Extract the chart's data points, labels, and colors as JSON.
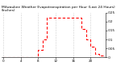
{
  "hours": [
    0,
    1,
    2,
    3,
    4,
    5,
    6,
    7,
    8,
    9,
    10,
    11,
    12,
    13,
    14,
    15,
    16,
    17,
    18,
    19,
    20,
    21,
    22,
    23
  ],
  "values": [
    0,
    0,
    0,
    0,
    0,
    0,
    0,
    0,
    0.004,
    0.01,
    0.022,
    0.022,
    0.022,
    0.022,
    0.022,
    0.022,
    0.022,
    0.022,
    0.016,
    0.01,
    0.006,
    0.002,
    0.001,
    0
  ],
  "line_color": "#ff0000",
  "bg_color": "#ffffff",
  "grid_color": "#999999",
  "ylim": [
    0,
    0.025
  ],
  "yticks": [
    0,
    0.005,
    0.01,
    0.015,
    0.02,
    0.025
  ],
  "ytick_labels": [
    ".0",
    ".005",
    ".01",
    ".015",
    ".02",
    ".025"
  ],
  "xticks": [
    0,
    4,
    8,
    12,
    16,
    20
  ],
  "xtick_labels": [
    "0",
    "4",
    "8",
    "12",
    "16",
    "20"
  ],
  "title": "Milwaukee Weather Evapotranspiration per Hour (Last 24 Hours) (Inches)",
  "title_fontsize": 3.2,
  "tick_fontsize": 3.0,
  "line_width": 0.8,
  "dash_on": 3,
  "dash_off": 2
}
